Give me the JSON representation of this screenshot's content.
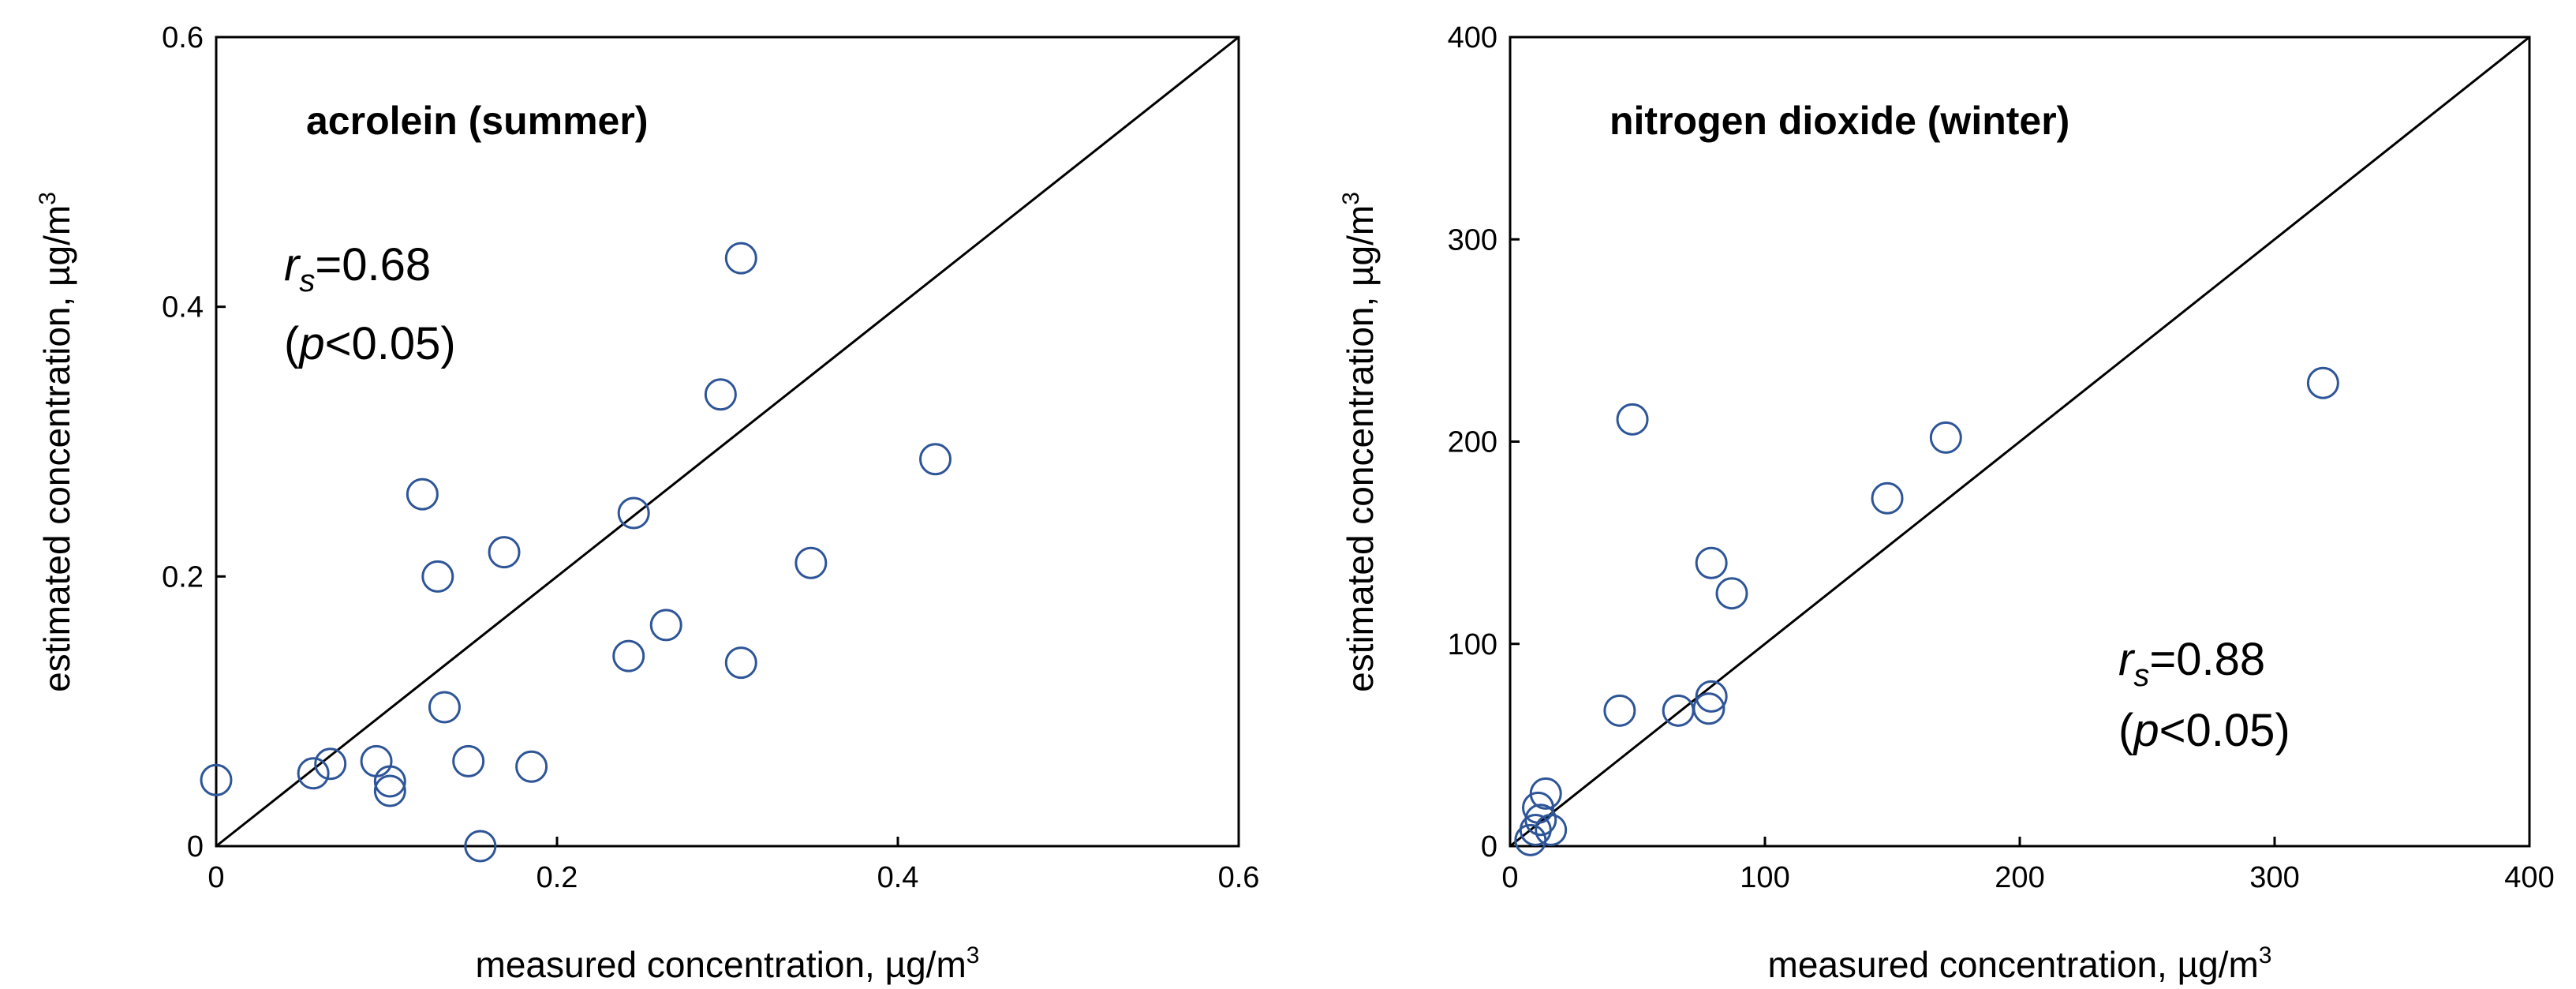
{
  "chart_data": [
    {
      "type": "scatter",
      "title": "acrolein (summer)",
      "xlabel": "measured concentration, µg/m",
      "xlabel_sup": "3",
      "ylabel": "estimated concentration, µg/m",
      "ylabel_sup": "3",
      "xlim": [
        0,
        0.6
      ],
      "ylim": [
        0,
        0.6
      ],
      "xticks": [
        0,
        0.2,
        0.4,
        0.6
      ],
      "yticks": [
        0,
        0.2,
        0.4,
        0.6
      ],
      "xtick_labels": [
        "0",
        "0.2",
        "0.4",
        "0.6"
      ],
      "ytick_labels": [
        "0",
        "0.2",
        "0.4",
        "0.6"
      ],
      "reference_line": "1:1",
      "stat_r_letter": "r",
      "stat_r_sub": "s",
      "stat_r_value": "=0.68",
      "stat_p_open": "(",
      "stat_p_letter": "p",
      "stat_p_rest": "<0.05)",
      "stat_position": "upper-left",
      "marker_color": "#2e5597",
      "points": [
        {
          "x": 0.0,
          "y": 0.049
        },
        {
          "x": 0.057,
          "y": 0.054
        },
        {
          "x": 0.067,
          "y": 0.061
        },
        {
          "x": 0.094,
          "y": 0.063
        },
        {
          "x": 0.102,
          "y": 0.048
        },
        {
          "x": 0.102,
          "y": 0.041
        },
        {
          "x": 0.121,
          "y": 0.261
        },
        {
          "x": 0.13,
          "y": 0.2
        },
        {
          "x": 0.134,
          "y": 0.103
        },
        {
          "x": 0.148,
          "y": 0.063
        },
        {
          "x": 0.155,
          "y": 0.0
        },
        {
          "x": 0.169,
          "y": 0.218
        },
        {
          "x": 0.185,
          "y": 0.059
        },
        {
          "x": 0.242,
          "y": 0.141
        },
        {
          "x": 0.245,
          "y": 0.247
        },
        {
          "x": 0.264,
          "y": 0.164
        },
        {
          "x": 0.296,
          "y": 0.335
        },
        {
          "x": 0.308,
          "y": 0.136
        },
        {
          "x": 0.308,
          "y": 0.436
        },
        {
          "x": 0.349,
          "y": 0.21
        },
        {
          "x": 0.422,
          "y": 0.287
        }
      ]
    },
    {
      "type": "scatter",
      "title": "nitrogen dioxide (winter)",
      "xlabel": "measured concentration, µg/m",
      "xlabel_sup": "3",
      "ylabel": "estimated concentration, µg/m",
      "ylabel_sup": "3",
      "xlim": [
        0,
        400
      ],
      "ylim": [
        0,
        400
      ],
      "xticks": [
        0,
        100,
        200,
        300,
        400
      ],
      "yticks": [
        0,
        100,
        200,
        300,
        400
      ],
      "xtick_labels": [
        "0",
        "100",
        "200",
        "300",
        "400"
      ],
      "ytick_labels": [
        "0",
        "100",
        "200",
        "300",
        "400"
      ],
      "reference_line": "1:1",
      "stat_r_letter": "r",
      "stat_r_sub": "s",
      "stat_r_value": "=0.88",
      "stat_p_open": "(",
      "stat_p_letter": "p",
      "stat_p_rest": "<0.05)",
      "stat_position": "lower-right",
      "marker_color": "#2e5597",
      "points": [
        {
          "x": 8,
          "y": 3
        },
        {
          "x": 10,
          "y": 8
        },
        {
          "x": 11,
          "y": 19
        },
        {
          "x": 12,
          "y": 13
        },
        {
          "x": 14,
          "y": 26
        },
        {
          "x": 16,
          "y": 8
        },
        {
          "x": 43,
          "y": 67
        },
        {
          "x": 48,
          "y": 211
        },
        {
          "x": 66,
          "y": 67
        },
        {
          "x": 78,
          "y": 68
        },
        {
          "x": 79,
          "y": 74
        },
        {
          "x": 79,
          "y": 140
        },
        {
          "x": 87,
          "y": 125
        },
        {
          "x": 148,
          "y": 172
        },
        {
          "x": 171,
          "y": 202
        },
        {
          "x": 319,
          "y": 229
        }
      ]
    }
  ]
}
